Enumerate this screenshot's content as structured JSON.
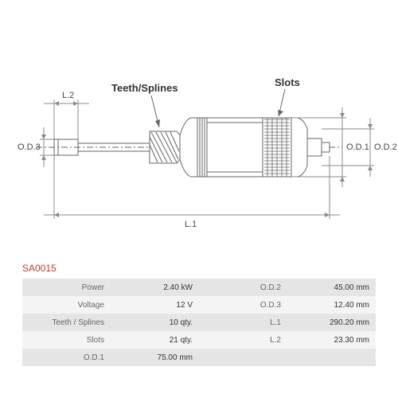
{
  "part_number": "SA0015",
  "diagram": {
    "callouts": {
      "teeth_splines": "Teeth/Splines",
      "slots": "Slots"
    },
    "dimensions": {
      "l1": "L.1",
      "l2": "L.2",
      "od1": "O.D.1",
      "od2": "O.D.2",
      "od3": "O.D.3"
    },
    "colors": {
      "stroke": "#666666",
      "dim_stroke": "#8a8a8a",
      "text": "#444444",
      "background": "#ffffff"
    }
  },
  "specs": {
    "left": [
      {
        "label": "Power",
        "value": "2.40 kW"
      },
      {
        "label": "Voltage",
        "value": "12 V"
      },
      {
        "label": "Teeth / Splines",
        "value": "10 qty."
      },
      {
        "label": "Slots",
        "value": "21 qty."
      },
      {
        "label": "O.D.1",
        "value": "75.00 mm"
      }
    ],
    "right": [
      {
        "label": "O.D.2",
        "value": "45.00 mm"
      },
      {
        "label": "O.D.3",
        "value": "12.40 mm"
      },
      {
        "label": "L.1",
        "value": "290.20 mm"
      },
      {
        "label": "L.2",
        "value": "23.30 mm"
      },
      {
        "label": "",
        "value": ""
      }
    ]
  },
  "table_style": {
    "odd_row_bg": "#e5e5e5",
    "even_row_bg": "#f4f4f4",
    "font_size": 10
  }
}
